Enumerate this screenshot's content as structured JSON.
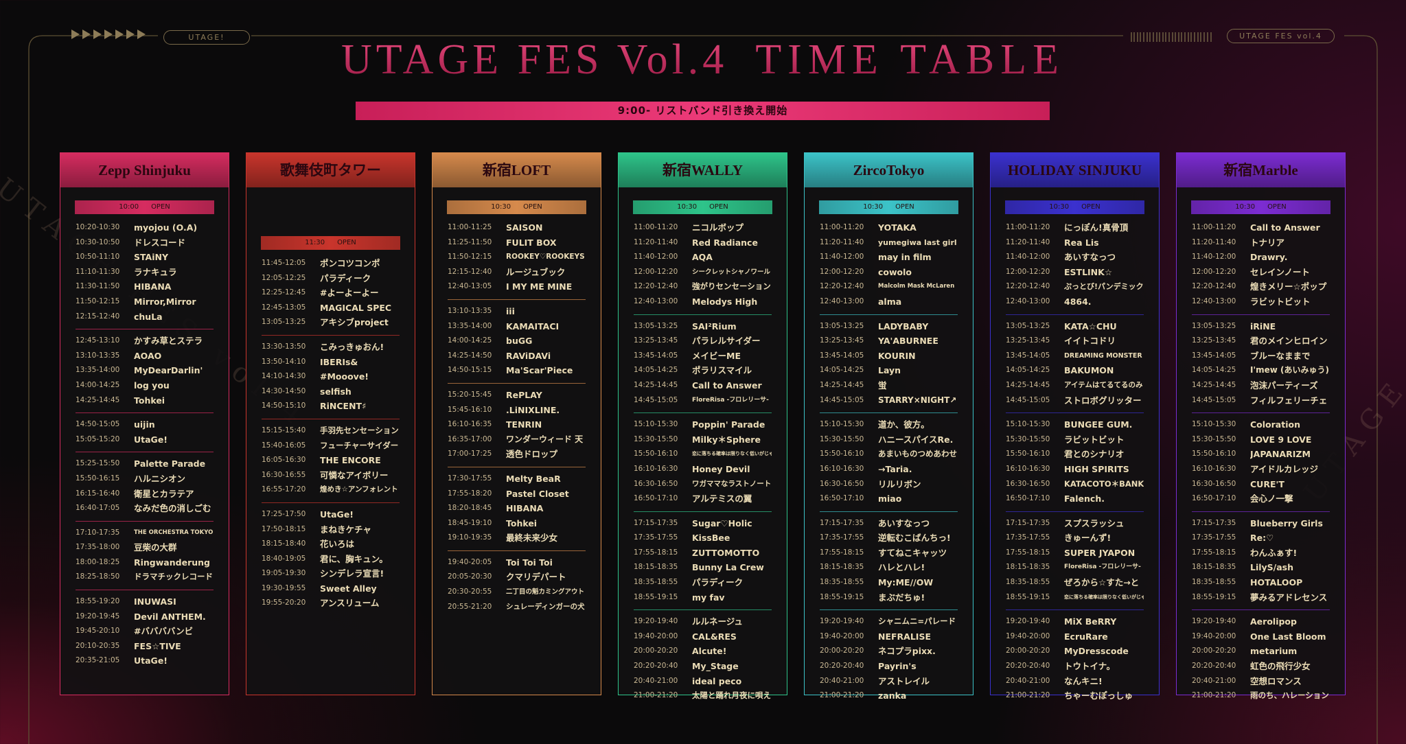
{
  "header": {
    "logo": "UTAGE FES Vol.4",
    "title": "TIME TABLE",
    "tag": "UTAGE!",
    "badge": "UTAGE FES vol.4",
    "watermark": "UTAGE FES vol.4",
    "banner": "9:00- リストバンド引き換え開始"
  },
  "venues": [
    {
      "name": "Zepp Shinjuku",
      "color": "#d62c60",
      "open": {
        "time": "10:00",
        "label": "OPEN"
      },
      "groups": [
        [
          [
            "10:20-10:30",
            "myojou (O.A)"
          ],
          [
            "10:30-10:50",
            "ドレスコード"
          ],
          [
            "10:50-11:10",
            "STAiNY"
          ],
          [
            "11:10-11:30",
            "ラナキュラ"
          ],
          [
            "11:30-11:50",
            "HIBANA"
          ],
          [
            "11:50-12:15",
            "Mirror,Mirror"
          ],
          [
            "12:15-12:40",
            "chuLa"
          ]
        ],
        [
          [
            "12:45-13:10",
            "かすみ草とステラ"
          ],
          [
            "13:10-13:35",
            "AOAO"
          ],
          [
            "13:35-14:00",
            "MyDearDarlin'"
          ],
          [
            "14:00-14:25",
            "log you"
          ],
          [
            "14:25-14:45",
            "Tohkei"
          ]
        ],
        [
          [
            "14:50-15:05",
            "uijin"
          ],
          [
            "15:05-15:20",
            "UtaGe!"
          ]
        ],
        [
          [
            "15:25-15:50",
            "Palette Parade"
          ],
          [
            "15:50-16:15",
            "ハルニシオン"
          ],
          [
            "16:15-16:40",
            "衛星とカラテア"
          ],
          [
            "16:40-17:05",
            "なみだ色の消しごむ"
          ]
        ],
        [
          [
            "17:10-17:35",
            "THE ORCHESTRA TOKYO"
          ],
          [
            "17:35-18:00",
            "豆柴の大群"
          ],
          [
            "18:00-18:25",
            "Ringwanderung"
          ],
          [
            "18:25-18:50",
            "ドラマチックレコード"
          ]
        ],
        [
          [
            "18:55-19:20",
            "INUWASI"
          ],
          [
            "19:20-19:45",
            "Devil ANTHEM."
          ],
          [
            "19:45-20:10",
            "#ババババンビ"
          ],
          [
            "20:10-20:35",
            "FES☆TIVE"
          ],
          [
            "20:35-21:05",
            "UtaGe!"
          ]
        ]
      ]
    },
    {
      "name": "歌舞伎町タワー",
      "color": "#c9352c",
      "open": {
        "time": "11:30",
        "label": "OPEN"
      },
      "groups": [
        [
          [
            "11:45-12:05",
            "ポンコツコンポ"
          ],
          [
            "12:05-12:25",
            "パラディーク"
          ],
          [
            "12:25-12:45",
            "#よーよーよー"
          ],
          [
            "12:45-13:05",
            "MAGICAL SPEC"
          ],
          [
            "13:05-13:25",
            "アキシブproject"
          ]
        ],
        [
          [
            "13:30-13:50",
            "こみっきゅおん!"
          ],
          [
            "13:50-14:10",
            "IBERIs&"
          ],
          [
            "14:10-14:30",
            "#Mooove!"
          ],
          [
            "14:30-14:50",
            "selfish"
          ],
          [
            "14:50-15:10",
            "RiNCENT♯"
          ]
        ],
        [
          [
            "15:15-15:40",
            "手羽先センセーション"
          ],
          [
            "15:40-16:05",
            "フューチャーサイダー"
          ],
          [
            "16:05-16:30",
            "THE ENCORE"
          ],
          [
            "16:30-16:55",
            "可憐なアイボリー"
          ],
          [
            "16:55-17:20",
            "煌めき☆アンフォレント"
          ]
        ],
        [
          [
            "17:25-17:50",
            "UtaGe!"
          ],
          [
            "17:50-18:15",
            "まねきケチャ"
          ],
          [
            "18:15-18:40",
            "花いろは"
          ],
          [
            "18:40-19:05",
            "君に、胸キュン。"
          ],
          [
            "19:05-19:30",
            "シンデレラ宣言!"
          ],
          [
            "19:30-19:55",
            "Sweet Alley"
          ],
          [
            "19:55-20:20",
            "アンスリューム"
          ]
        ]
      ]
    },
    {
      "name": "新宿LOFT",
      "color": "#d68a4c",
      "open": {
        "time": "10:30",
        "label": "OPEN"
      },
      "groups": [
        [
          [
            "11:00-11:25",
            "SAISON"
          ],
          [
            "11:25-11:50",
            "FULIT BOX"
          ],
          [
            "11:50-12:15",
            "ROOKEY♡ROOKEYS"
          ],
          [
            "12:15-12:40",
            "ルージュブック"
          ],
          [
            "12:40-13:05",
            "I MY ME MINE"
          ]
        ],
        [
          [
            "13:10-13:35",
            "iii"
          ],
          [
            "13:35-14:00",
            "KAMAITACI"
          ],
          [
            "14:00-14:25",
            "buGG"
          ],
          [
            "14:25-14:50",
            "RAViDAVi"
          ],
          [
            "14:50-15:15",
            "Ma'Scar'Piece"
          ]
        ],
        [
          [
            "15:20-15:45",
            "RePLAY"
          ],
          [
            "15:45-16:10",
            ".LiNIXLINE."
          ],
          [
            "16:10-16:35",
            "TENRIN"
          ],
          [
            "16:35-17:00",
            "ワンダーウィード 天"
          ],
          [
            "17:00-17:25",
            "透色ドロップ"
          ]
        ],
        [
          [
            "17:30-17:55",
            "Melty BeaR"
          ],
          [
            "17:55-18:20",
            "Pastel Closet"
          ],
          [
            "18:20-18:45",
            "HIBANA"
          ],
          [
            "18:45-19:10",
            "Tohkei"
          ],
          [
            "19:10-19:35",
            "最終未来少女"
          ]
        ],
        [
          [
            "19:40-20:05",
            "Toi Toi Toi"
          ],
          [
            "20:05-20:30",
            "クマリデパート"
          ],
          [
            "20:30-20:55",
            "二丁目の魁カミングアウト"
          ],
          [
            "20:55-21:20",
            "シュレーディンガーの犬"
          ]
        ]
      ]
    },
    {
      "name": "新宿WALLY",
      "color": "#2ec48a",
      "open": {
        "time": "10:30",
        "label": "OPEN"
      },
      "groups": [
        [
          [
            "11:00-11:20",
            "ニコルボップ"
          ],
          [
            "11:20-11:40",
            "Red Radiance"
          ],
          [
            "11:40-12:00",
            "AQA"
          ],
          [
            "12:00-12:20",
            "シークレットシャノワール"
          ],
          [
            "12:20-12:40",
            "強がりセンセーション"
          ],
          [
            "12:40-13:00",
            "Melodys High"
          ]
        ],
        [
          [
            "13:05-13:25",
            "SAI²Rium"
          ],
          [
            "13:25-13:45",
            "パラレルサイダー"
          ],
          [
            "13:45-14:05",
            "メイビーME"
          ],
          [
            "14:05-14:25",
            "ポラリスマイル"
          ],
          [
            "14:25-14:45",
            "Call to Answer"
          ],
          [
            "14:45-15:05",
            "FloreRisa -フロレリーサ-"
          ]
        ],
        [
          [
            "15:10-15:30",
            "Poppin' Parade"
          ],
          [
            "15:30-15:50",
            "Milky＊Sphere"
          ],
          [
            "15:50-16:10",
            "恋に落ちる確率は限りなく低いがじゃない"
          ],
          [
            "16:10-16:30",
            "Honey Devil"
          ],
          [
            "16:30-16:50",
            "ワガママなラストノート"
          ],
          [
            "16:50-17:10",
            "アルテミスの翼"
          ]
        ],
        [
          [
            "17:15-17:35",
            "Sugar♡Holic"
          ],
          [
            "17:35-17:55",
            "KissBee"
          ],
          [
            "17:55-18:15",
            "ZUTTOMOTTO"
          ],
          [
            "18:15-18:35",
            "Bunny La Crew"
          ],
          [
            "18:35-18:55",
            "パラディーク"
          ],
          [
            "18:55-19:15",
            "my fav"
          ]
        ],
        [
          [
            "19:20-19:40",
            "ルルネージュ"
          ],
          [
            "19:40-20:00",
            "CAL&RES"
          ],
          [
            "20:00-20:20",
            "Alcute!"
          ],
          [
            "20:20-20:40",
            "My_Stage"
          ],
          [
            "20:40-21:00",
            "ideal peco"
          ],
          [
            "21:00-21:20",
            "太陽と踊れ月夜に唄え"
          ]
        ]
      ]
    },
    {
      "name": "ZircoTokyo",
      "color": "#3cc3c8",
      "open": {
        "time": "10:30",
        "label": "OPEN"
      },
      "groups": [
        [
          [
            "11:00-11:20",
            "YOTAKA"
          ],
          [
            "11:20-11:40",
            "yumegiwa last girl"
          ],
          [
            "11:40-12:00",
            "may in film"
          ],
          [
            "12:00-12:20",
            "cowolo"
          ],
          [
            "12:20-12:40",
            "Malcolm Mask McLaren"
          ],
          [
            "12:40-13:00",
            "alma"
          ]
        ],
        [
          [
            "13:05-13:25",
            "LADYBABY"
          ],
          [
            "13:25-13:45",
            "YA'ABURNEE"
          ],
          [
            "13:45-14:05",
            "KOURIN"
          ],
          [
            "14:05-14:25",
            "Layn"
          ],
          [
            "14:25-14:45",
            "蛍"
          ],
          [
            "14:45-15:05",
            "STARRY×NIGHT↗"
          ]
        ],
        [
          [
            "15:10-15:30",
            "道か、彼方。"
          ],
          [
            "15:30-15:50",
            "ハニースパイスRe."
          ],
          [
            "15:50-16:10",
            "あまいものつめあわせ"
          ],
          [
            "16:10-16:30",
            "→Taria."
          ],
          [
            "16:30-16:50",
            "リルリボン"
          ],
          [
            "16:50-17:10",
            "miao"
          ]
        ],
        [
          [
            "17:15-17:35",
            "あいすなっつ"
          ],
          [
            "17:35-17:55",
            "逆転むこばんちっ!"
          ],
          [
            "17:55-18:15",
            "すてねこキャッツ"
          ],
          [
            "18:15-18:35",
            "ハレとハレ!"
          ],
          [
            "18:35-18:55",
            "My:ME//OW"
          ],
          [
            "18:55-19:15",
            "まぶだちゅ!"
          ]
        ],
        [
          [
            "19:20-19:40",
            "シャニムニ=パレード"
          ],
          [
            "19:40-20:00",
            "NEFRALISE"
          ],
          [
            "20:00-20:20",
            "ネコプラpixx."
          ],
          [
            "20:20-20:40",
            "Payrin's"
          ],
          [
            "20:40-21:00",
            "アストレイル"
          ],
          [
            "21:00-21:20",
            "zanka"
          ]
        ]
      ]
    },
    {
      "name": "HOLIDAY SINJUKU",
      "color": "#3b31cf",
      "open": {
        "time": "10:30",
        "label": "OPEN"
      },
      "groups": [
        [
          [
            "11:00-11:20",
            "にっぽん!真骨頂"
          ],
          [
            "11:20-11:40",
            "Rea Lis"
          ],
          [
            "11:40-12:00",
            "あいすなっつ"
          ],
          [
            "12:00-12:20",
            "ESTLINK☆"
          ],
          [
            "12:20-12:40",
            "ぷっとび!パンデミック"
          ],
          [
            "12:40-13:00",
            "4864."
          ]
        ],
        [
          [
            "13:05-13:25",
            "KATA☆CHU"
          ],
          [
            "13:25-13:45",
            "イイトコドリ"
          ],
          [
            "13:45-14:05",
            "DREAMING MONSTER"
          ],
          [
            "14:05-14:25",
            "BAKUMON"
          ],
          [
            "14:25-14:45",
            "アイテムはてるてるのみ"
          ],
          [
            "14:45-15:05",
            "ストロボグリッター"
          ]
        ],
        [
          [
            "15:10-15:30",
            "BUNGEE GUM."
          ],
          [
            "15:30-15:50",
            "ラビットビット"
          ],
          [
            "15:50-16:10",
            "君とのシナリオ"
          ],
          [
            "16:10-16:30",
            "HIGH SPIRITS"
          ],
          [
            "16:30-16:50",
            "KATACOTO＊BANK"
          ],
          [
            "16:50-17:10",
            "Falench."
          ]
        ],
        [
          [
            "17:15-17:35",
            "スプスラッシュ"
          ],
          [
            "17:35-17:55",
            "きゅーんず!"
          ],
          [
            "17:55-18:15",
            "SUPER JYAPON"
          ],
          [
            "18:15-18:35",
            "FloreRisa -フロレリーサ-"
          ],
          [
            "18:35-18:55",
            "ぜろから☆すた→と"
          ],
          [
            "18:55-19:15",
            "恋に落ちる確率は限りなく低いがじゃない"
          ]
        ],
        [
          [
            "19:20-19:40",
            "MiX BeRRY"
          ],
          [
            "19:40-20:00",
            "EcruRare"
          ],
          [
            "20:00-20:20",
            "MyDresscode"
          ],
          [
            "20:20-20:40",
            "トウトイナ。"
          ],
          [
            "20:40-21:00",
            "なんキニ!"
          ],
          [
            "21:00-21:20",
            "ちゃーむぽっしゅ"
          ]
        ]
      ]
    },
    {
      "name": "新宿Marble",
      "color": "#7c2cd2",
      "open": {
        "time": "10:30",
        "label": "OPEN"
      },
      "groups": [
        [
          [
            "11:00-11:20",
            "Call to Answer"
          ],
          [
            "11:20-11:40",
            "トナリア"
          ],
          [
            "11:40-12:00",
            "Drawry."
          ],
          [
            "12:00-12:20",
            "セレインノート"
          ],
          [
            "12:20-12:40",
            "煌きメリー☆ポップ"
          ],
          [
            "12:40-13:00",
            "ラビットビット"
          ]
        ],
        [
          [
            "13:05-13:25",
            "iRiNE"
          ],
          [
            "13:25-13:45",
            "君のメインヒロイン"
          ],
          [
            "13:45-14:05",
            "ブルーなままで"
          ],
          [
            "14:05-14:25",
            "I'mew (あいみゅう)"
          ],
          [
            "14:25-14:45",
            "泡沫パーティーズ"
          ],
          [
            "14:45-15:05",
            "フィルフェリーチェ"
          ]
        ],
        [
          [
            "15:10-15:30",
            "Coloration"
          ],
          [
            "15:30-15:50",
            "LOVE 9 LOVE"
          ],
          [
            "15:50-16:10",
            "JAPANARIZM"
          ],
          [
            "16:10-16:30",
            "アイドルカレッジ"
          ],
          [
            "16:30-16:50",
            "CURE'T"
          ],
          [
            "16:50-17:10",
            "会心ノ一撃"
          ]
        ],
        [
          [
            "17:15-17:35",
            "Blueberry Girls"
          ],
          [
            "17:35-17:55",
            "Re:♡"
          ],
          [
            "17:55-18:15",
            "わんふぁす!"
          ],
          [
            "18:15-18:35",
            "LilyS/ash"
          ],
          [
            "18:35-18:55",
            "HOTALOOP"
          ],
          [
            "18:55-19:15",
            "夢みるアドレセンス"
          ]
        ],
        [
          [
            "19:20-19:40",
            "Aerolipop"
          ],
          [
            "19:40-20:00",
            "One Last Bloom"
          ],
          [
            "20:00-20:20",
            "metarium"
          ],
          [
            "20:20-20:40",
            "虹色の飛行少女"
          ],
          [
            "20:40-21:00",
            "空想ロマンス"
          ],
          [
            "21:00-21:20",
            "雨のち、ハレーション"
          ]
        ]
      ]
    }
  ]
}
